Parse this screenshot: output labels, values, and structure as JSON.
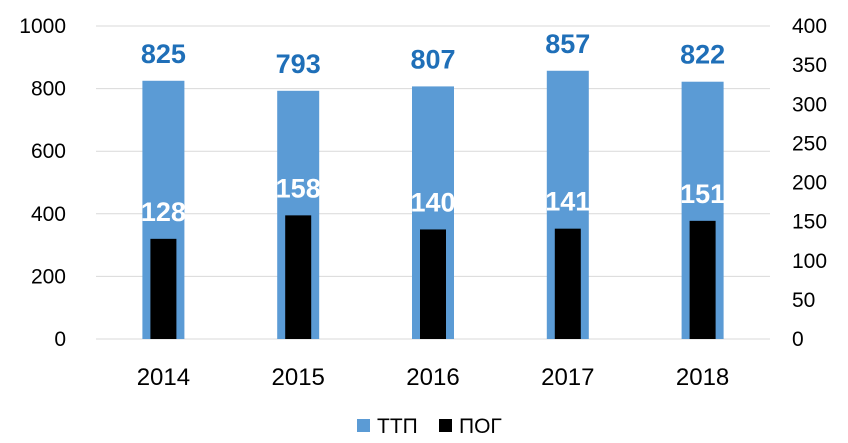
{
  "chart_data": {
    "type": "bar",
    "categories": [
      "2014",
      "2015",
      "2016",
      "2017",
      "2018"
    ],
    "series": [
      {
        "name": "ТТП",
        "values": [
          825,
          793,
          807,
          857,
          822
        ],
        "color": "#5b9bd5",
        "label_color": "#1f6fb8",
        "axis": "left"
      },
      {
        "name": "ПОГ",
        "values": [
          128,
          158,
          140,
          141,
          151
        ],
        "color": "#000000",
        "label_color": "#ffffff",
        "axis": "right"
      }
    ],
    "ylim": [
      0,
      1000
    ],
    "y_ticks": [
      "0",
      "200",
      "400",
      "600",
      "800",
      "1000"
    ],
    "y2lim": [
      0,
      400
    ],
    "y2_ticks": [
      "0",
      "50",
      "100",
      "150",
      "200",
      "250",
      "300",
      "350",
      "400"
    ],
    "grid": true,
    "legend_position": "bottom"
  }
}
